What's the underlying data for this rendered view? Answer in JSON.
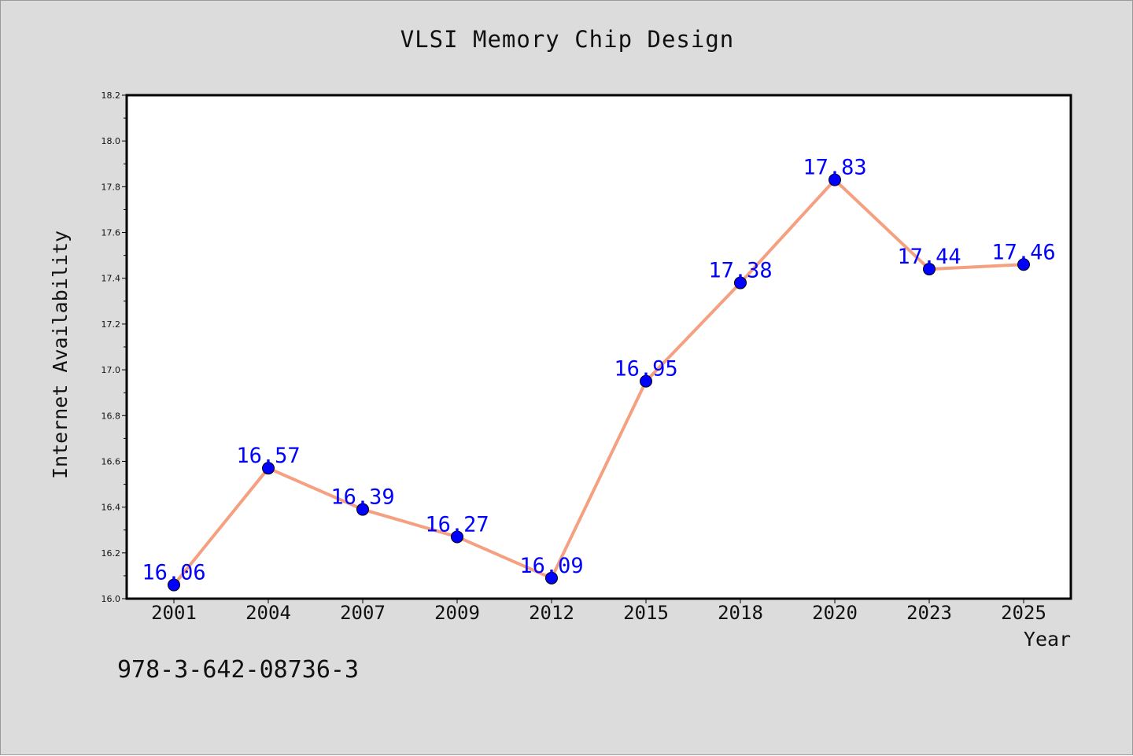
{
  "figure": {
    "title": "VLSI Memory Chip Design",
    "footnote": "978-3-642-08736-3",
    "background_color": "#dcdcdc",
    "plot_background_color": "#ffffff"
  },
  "chart_data": {
    "type": "line",
    "title": "VLSI Memory Chip Design",
    "xlabel": "Year",
    "ylabel": "Internet Availability",
    "categories": [
      "2001",
      "2004",
      "2007",
      "2009",
      "2012",
      "2015",
      "2018",
      "2020",
      "2023",
      "2025"
    ],
    "series": [
      {
        "values": [
          16.06,
          16.57,
          16.39,
          16.27,
          16.09,
          16.95,
          17.38,
          17.83,
          17.44,
          17.46
        ],
        "line_color": "#f4a081",
        "marker_color": "#0000ff",
        "label_color": "#0000ff"
      }
    ],
    "data_labels": [
      "16.06",
      "16.57",
      "16.39",
      "16.27",
      "16.09",
      "16.95",
      "17.38",
      "17.83",
      "17.44",
      "17.46"
    ],
    "ylim": [
      16.0,
      18.2
    ],
    "yticks": [
      "16.0",
      "16.2",
      "16.4",
      "16.6",
      "16.8",
      "17.0",
      "17.2",
      "17.4",
      "17.6",
      "17.8",
      "18.0",
      "18.2"
    ],
    "grid": false,
    "legend": "none"
  }
}
